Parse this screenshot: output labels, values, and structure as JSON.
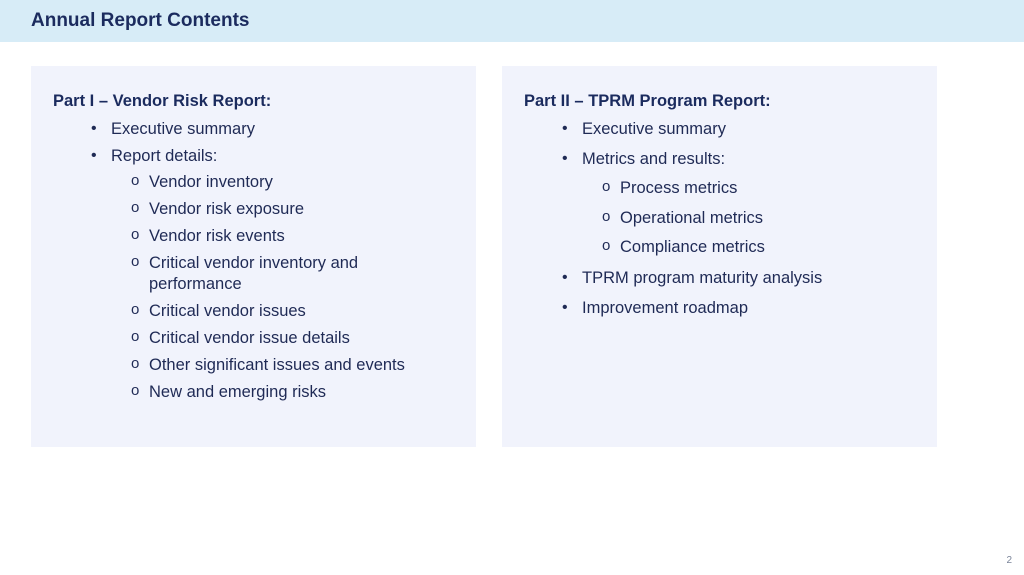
{
  "title": "Annual Report Contents",
  "part1": {
    "heading": "Part I – Vendor Risk Report:",
    "items": [
      {
        "bullet": "•",
        "text": "Executive summary"
      },
      {
        "bullet": "•",
        "text": "Report details:"
      }
    ],
    "subitems": [
      {
        "bullet": "o",
        "text": "Vendor inventory"
      },
      {
        "bullet": "o",
        "text": "Vendor risk exposure"
      },
      {
        "bullet": "o",
        "text": "Vendor risk events"
      },
      {
        "bullet": "o",
        "text": "Critical vendor inventory and performance"
      },
      {
        "bullet": "o",
        "text": "Critical vendor issues"
      },
      {
        "bullet": "o",
        "text": "Critical vendor issue details"
      },
      {
        "bullet": "o",
        "text": "Other significant issues and events"
      },
      {
        "bullet": "o",
        "text": "New and emerging risks"
      }
    ]
  },
  "part2": {
    "heading": "Part II – TPRM Program Report:",
    "items": [
      {
        "bullet": "•",
        "text": "Executive summary"
      },
      {
        "bullet": "•",
        "text": "Metrics and results:"
      },
      {
        "bullet": "•",
        "text": "TPRM program maturity analysis"
      },
      {
        "bullet": "•",
        "text": "Improvement roadmap"
      }
    ],
    "subitems": [
      {
        "bullet": "o",
        "text": "Process metrics"
      },
      {
        "bullet": "o",
        "text": "Operational metrics"
      },
      {
        "bullet": "o",
        "text": "Compliance metrics"
      }
    ]
  },
  "page_number": "2"
}
